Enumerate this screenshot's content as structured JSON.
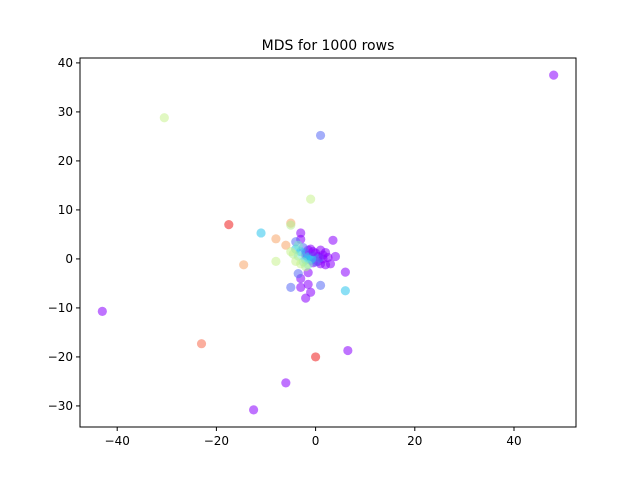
{
  "chart_data": {
    "type": "scatter",
    "title": "MDS for 1000 rows",
    "xlabel": "",
    "ylabel": "",
    "xlim": [
      -47.5,
      52.5
    ],
    "ylim": [
      -34.3,
      41.0
    ],
    "xticks": [
      -40,
      -20,
      0,
      20,
      40
    ],
    "yticks": [
      -30,
      -20,
      -10,
      0,
      10,
      20,
      30,
      40
    ],
    "tick_labels_x": [
      "−40",
      "−20",
      "0",
      "20",
      "40"
    ],
    "tick_labels_y": [
      "−30",
      "−20",
      "−10",
      "0",
      "10",
      "20",
      "30",
      "40"
    ],
    "grid": false,
    "legend": "none",
    "marker_alpha": 0.55,
    "points": [
      {
        "x": 48.0,
        "y": 37.5,
        "color": "#8b00ff"
      },
      {
        "x": 1.0,
        "y": 25.2,
        "color": "#5a6cf6"
      },
      {
        "x": -30.5,
        "y": 28.8,
        "color": "#c8f28f"
      },
      {
        "x": -1.0,
        "y": 12.2,
        "color": "#c8f28f"
      },
      {
        "x": -17.5,
        "y": 7.0,
        "color": "#ef1e1e"
      },
      {
        "x": -5.0,
        "y": 7.3,
        "color": "#f7a66a"
      },
      {
        "x": -5.0,
        "y": 6.9,
        "color": "#b7ef95"
      },
      {
        "x": -11.0,
        "y": 5.3,
        "color": "#2cc4ec"
      },
      {
        "x": -8.0,
        "y": 4.1,
        "color": "#f7a66a"
      },
      {
        "x": -6.0,
        "y": 2.8,
        "color": "#f7a66a"
      },
      {
        "x": -14.5,
        "y": -1.2,
        "color": "#f7a66a"
      },
      {
        "x": -8.0,
        "y": -0.5,
        "color": "#c8f28f"
      },
      {
        "x": -43.0,
        "y": -10.7,
        "color": "#8b00ff"
      },
      {
        "x": -23.0,
        "y": -17.3,
        "color": "#f76b4e"
      },
      {
        "x": 0.0,
        "y": -20.0,
        "color": "#ef1e1e"
      },
      {
        "x": 6.5,
        "y": -18.7,
        "color": "#8b00ff"
      },
      {
        "x": -6.0,
        "y": -25.3,
        "color": "#8b00ff"
      },
      {
        "x": -12.5,
        "y": -30.8,
        "color": "#8b00ff"
      },
      {
        "x": 6.0,
        "y": -6.5,
        "color": "#2cc4ec"
      },
      {
        "x": 6.0,
        "y": -2.7,
        "color": "#8b00ff"
      },
      {
        "x": 1.0,
        "y": -5.4,
        "color": "#5a6cf6"
      },
      {
        "x": -5.0,
        "y": -5.8,
        "color": "#5a6cf6"
      },
      {
        "x": -3.0,
        "y": -5.8,
        "color": "#8b00ff"
      },
      {
        "x": -2.0,
        "y": -8.0,
        "color": "#8b00ff"
      },
      {
        "x": -1.0,
        "y": -6.8,
        "color": "#8b00ff"
      },
      {
        "x": -1.5,
        "y": -5.2,
        "color": "#8b00ff"
      },
      {
        "x": -3.0,
        "y": -4.0,
        "color": "#8b00ff"
      },
      {
        "x": -3.5,
        "y": -3.0,
        "color": "#5a6cf6"
      },
      {
        "x": -1.5,
        "y": -2.8,
        "color": "#8b00ff"
      },
      {
        "x": 3.5,
        "y": 3.8,
        "color": "#8b00ff"
      },
      {
        "x": 4.0,
        "y": 0.5,
        "color": "#8b00ff"
      },
      {
        "x": 2.0,
        "y": 1.3,
        "color": "#8b00ff"
      },
      {
        "x": 2.0,
        "y": -1.2,
        "color": "#8b00ff"
      },
      {
        "x": 1.0,
        "y": -1.0,
        "color": "#8b00ff"
      },
      {
        "x": 0.5,
        "y": 0.5,
        "color": "#8b00ff"
      },
      {
        "x": 0.0,
        "y": 1.2,
        "color": "#8b00ff"
      },
      {
        "x": -1.0,
        "y": 2.0,
        "color": "#8b00ff"
      },
      {
        "x": -1.5,
        "y": 1.8,
        "color": "#8b00ff"
      },
      {
        "x": -2.0,
        "y": 0.8,
        "color": "#8b00ff"
      },
      {
        "x": 1.5,
        "y": 0.0,
        "color": "#8b00ff"
      },
      {
        "x": 0.5,
        "y": -0.5,
        "color": "#8b00ff"
      },
      {
        "x": -0.5,
        "y": -0.8,
        "color": "#8b00ff"
      },
      {
        "x": -3.0,
        "y": 5.3,
        "color": "#8b00ff"
      },
      {
        "x": -3.0,
        "y": 4.0,
        "color": "#8b00ff"
      },
      {
        "x": -4.0,
        "y": 3.5,
        "color": "#5a6cf6"
      },
      {
        "x": -4.0,
        "y": 2.0,
        "color": "#2cc4ec"
      },
      {
        "x": -2.5,
        "y": 2.3,
        "color": "#5a6cf6"
      },
      {
        "x": -2.0,
        "y": 1.2,
        "color": "#5a6cf6"
      },
      {
        "x": -0.5,
        "y": 0.6,
        "color": "#5a6cf6"
      },
      {
        "x": -1.0,
        "y": -0.3,
        "color": "#5a6cf6"
      },
      {
        "x": 0.0,
        "y": -0.6,
        "color": "#5a6cf6"
      },
      {
        "x": 0.8,
        "y": 0.2,
        "color": "#5a6cf6"
      },
      {
        "x": -1.5,
        "y": 0.4,
        "color": "#2cc4ec"
      },
      {
        "x": -2.0,
        "y": -0.2,
        "color": "#2cc4ec"
      },
      {
        "x": -0.8,
        "y": 0.0,
        "color": "#2cc4ec"
      },
      {
        "x": -3.0,
        "y": 1.5,
        "color": "#2cc4ec"
      },
      {
        "x": -3.5,
        "y": 0.6,
        "color": "#7fe8c8"
      },
      {
        "x": -2.5,
        "y": -0.6,
        "color": "#7fe8c8"
      },
      {
        "x": -1.5,
        "y": -1.2,
        "color": "#7fe8c8"
      },
      {
        "x": -4.5,
        "y": 1.0,
        "color": "#b7ef95"
      },
      {
        "x": -4.0,
        "y": -0.5,
        "color": "#c8f28f"
      },
      {
        "x": -3.0,
        "y": -1.0,
        "color": "#c8f28f"
      },
      {
        "x": -2.0,
        "y": -1.6,
        "color": "#b7ef95"
      },
      {
        "x": -5.0,
        "y": 1.5,
        "color": "#c8f28f"
      },
      {
        "x": -3.5,
        "y": 2.8,
        "color": "#7fe8c8"
      },
      {
        "x": 1.5,
        "y": 0.8,
        "color": "#8b00ff"
      },
      {
        "x": 2.5,
        "y": 0.3,
        "color": "#8b00ff"
      },
      {
        "x": 3.0,
        "y": -1.0,
        "color": "#8b00ff"
      },
      {
        "x": -0.5,
        "y": 1.5,
        "color": "#8b00ff"
      },
      {
        "x": 1.0,
        "y": 1.8,
        "color": "#8b00ff"
      }
    ]
  }
}
